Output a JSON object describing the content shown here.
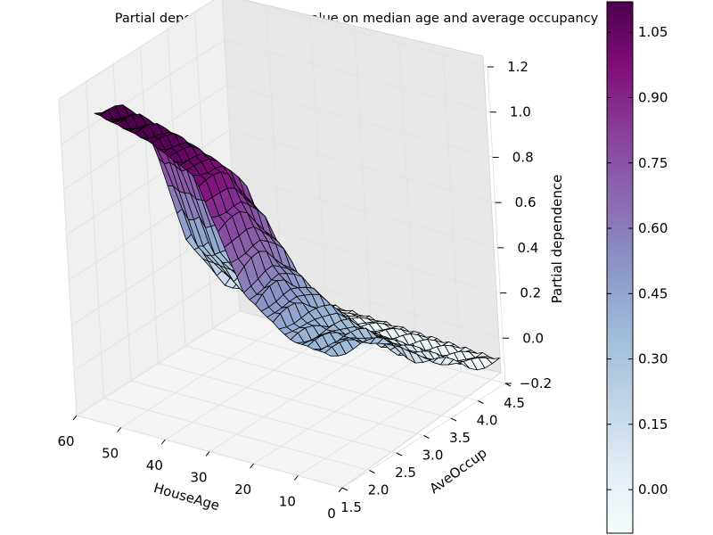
{
  "chart_data": {
    "type": "surface3d",
    "title": "Partial dependence of house value on median age and average occupancy",
    "x": {
      "label": "HouseAge",
      "range": [
        0,
        60
      ],
      "ticks": [
        0,
        10,
        20,
        30,
        40,
        50,
        60
      ],
      "tick_labels": [
        "0",
        "10",
        "20",
        "30",
        "40",
        "50",
        "60"
      ]
    },
    "y": {
      "label": "AveOccup",
      "range": [
        1.5,
        4.5
      ],
      "ticks": [
        1.5,
        2.0,
        2.5,
        3.0,
        3.5,
        4.0,
        4.5
      ],
      "tick_labels": [
        "1.5",
        "2.0",
        "2.5",
        "3.0",
        "3.5",
        "4.0",
        "4.5"
      ]
    },
    "z": {
      "label": "Partial dependence",
      "range": [
        -0.2,
        1.2
      ],
      "ticks": [
        -0.2,
        0.0,
        0.2,
        0.4,
        0.6,
        0.8,
        1.0,
        1.2
      ],
      "tick_labels": [
        "−0.2",
        "0.0",
        "0.2",
        "0.4",
        "0.6",
        "0.8",
        "1.0",
        "1.2"
      ]
    },
    "surface": {
      "house_age": [
        1,
        10,
        20,
        30,
        40,
        52
      ],
      "ave_occup": [
        1.5,
        2.0,
        2.5,
        3.0,
        3.5,
        4.0,
        4.5
      ],
      "values": [
        [
          0.38,
          0.36,
          0.28,
          0.14,
          0.04,
          -0.05,
          -0.1
        ],
        [
          0.4,
          0.38,
          0.34,
          0.17,
          0.06,
          -0.04,
          -0.09
        ],
        [
          0.55,
          0.6,
          0.48,
          0.22,
          0.08,
          -0.03,
          -0.08
        ],
        [
          1.02,
          1.0,
          0.78,
          0.3,
          0.1,
          -0.01,
          -0.07
        ],
        [
          1.12,
          1.08,
          0.86,
          0.36,
          0.13,
          0.0,
          -0.06
        ],
        [
          1.18,
          1.14,
          0.9,
          0.4,
          0.15,
          0.01,
          -0.05
        ]
      ]
    },
    "colorbar": {
      "colormap": "BuPu",
      "range": [
        -0.1,
        1.12
      ],
      "ticks": [
        0.0,
        0.15,
        0.3,
        0.45,
        0.6,
        0.75,
        0.9,
        1.05
      ],
      "tick_labels": [
        "0.00",
        "0.15",
        "0.30",
        "0.45",
        "0.60",
        "0.75",
        "0.90",
        "1.05"
      ]
    },
    "colors": [
      "#f7fcfd",
      "#e0ecf4",
      "#bfd3e6",
      "#9ebcda",
      "#8c96c6",
      "#8c6bb1",
      "#88419d",
      "#810f7c",
      "#4d004b"
    ],
    "view": {
      "elevation_deg": 22,
      "azimuth_deg": 122
    },
    "grid": true,
    "legend": "colorbar-right"
  }
}
